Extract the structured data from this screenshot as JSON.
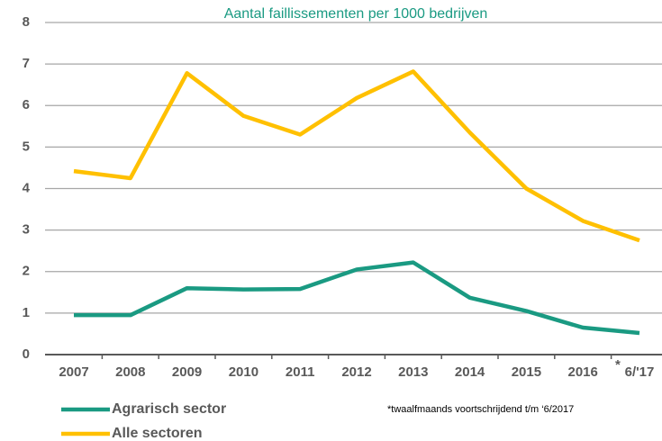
{
  "chart_data": {
    "type": "line",
    "title": "Aantal faillissementen per 1000 bedrijven",
    "categories": [
      "2007",
      "2008",
      "2009",
      "2010",
      "2011",
      "2012",
      "2013",
      "2014",
      "2015",
      "2016",
      "6/'17"
    ],
    "footnote_marker": "*",
    "footnote": "*twaalfmaands voortschrijdend t/m ‘6/2017",
    "series": [
      {
        "name": "Agrarisch sector",
        "color": "#1a9a82",
        "values": [
          0.95,
          0.95,
          1.6,
          1.57,
          1.58,
          2.05,
          2.22,
          1.37,
          1.05,
          0.65,
          0.52
        ]
      },
      {
        "name": "Alle sectoren",
        "color": "#ffc000",
        "values": [
          4.42,
          4.25,
          6.78,
          5.75,
          5.3,
          6.18,
          6.82,
          5.35,
          4.0,
          3.22,
          2.75
        ]
      }
    ],
    "ylim": [
      0,
      8
    ],
    "yticks": [
      0,
      1,
      2,
      3,
      4,
      5,
      6,
      7,
      8
    ],
    "grid": true
  }
}
